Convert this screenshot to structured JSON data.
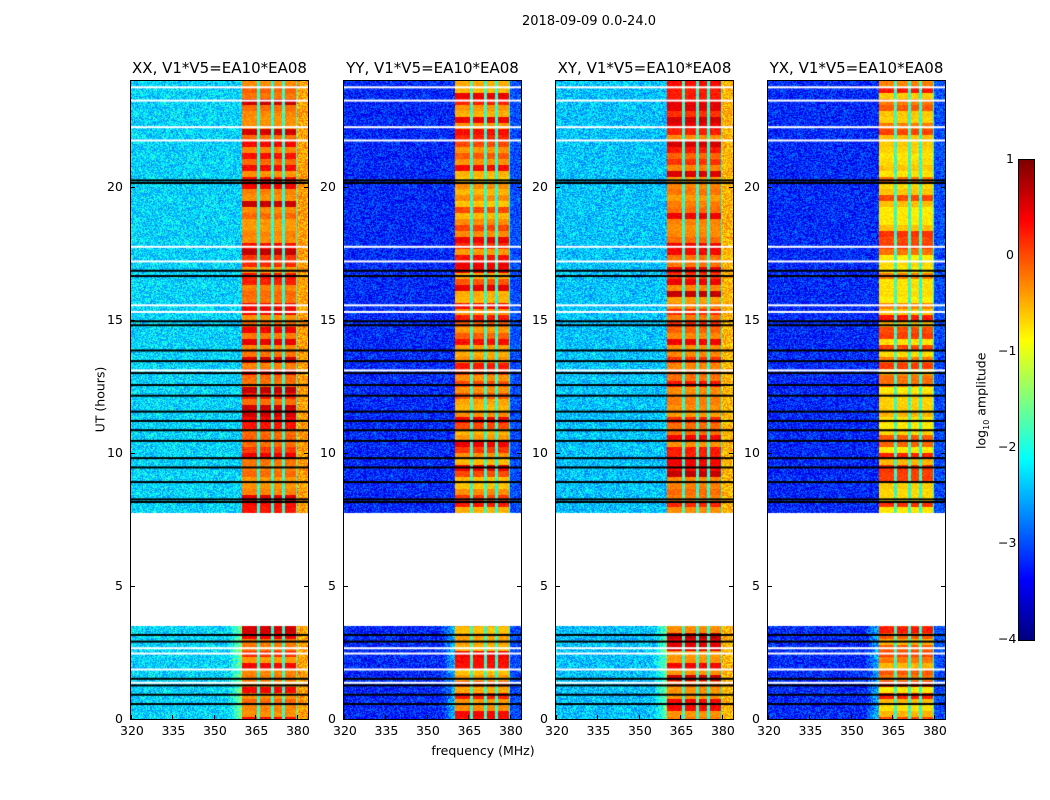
{
  "chart_data": {
    "type": "heatmap",
    "suptitle": "2018-09-09 0.0-24.0",
    "xlabel": "frequency (MHz)",
    "ylabel": "UT (hours)",
    "xlim": [
      320,
      384
    ],
    "ylim": [
      0,
      24
    ],
    "xticks": [
      320,
      335,
      350,
      365,
      380
    ],
    "yticks": [
      0,
      5,
      10,
      15,
      20
    ],
    "panels": [
      {
        "title": "XX, V1*V5=EA10*EA08",
        "background_log_amp": -2.3,
        "band_log_amp": -0.4,
        "outer_edge_log_amp": -0.4
      },
      {
        "title": "YY, V1*V5=EA10*EA08",
        "background_log_amp": -3.2,
        "band_log_amp": -0.6,
        "outer_edge_log_amp": -3.0
      },
      {
        "title": "XY, V1*V5=EA10*EA08",
        "background_log_amp": -2.4,
        "band_log_amp": -0.4,
        "outer_edge_log_amp": -0.5
      },
      {
        "title": "YX, V1*V5=EA10*EA08",
        "background_log_amp": -3.2,
        "band_log_amp": -0.8,
        "outer_edge_log_amp": -3.0
      }
    ],
    "rfi_band_mhz": [
      360,
      380
    ],
    "no_data_hours": [
      3.5,
      7.75
    ],
    "flagged_rows_black_hours": [
      20.2,
      20.3,
      16.9,
      16.7,
      15.0,
      14.85,
      13.9,
      13.5,
      13.05,
      12.6,
      12.2,
      11.6,
      11.25,
      10.9,
      10.5,
      9.85,
      9.5,
      8.95,
      8.3,
      8.2,
      3.2,
      2.95,
      1.55,
      1.3,
      0.95,
      0.6
    ],
    "flagged_rows_white_hours": [
      23.8,
      23.3,
      22.3,
      21.8,
      17.8,
      17.25,
      15.6,
      15.35,
      13.15,
      2.7,
      2.5,
      1.9,
      1.4
    ],
    "colorbar": {
      "label_prefix": "log",
      "label_sub": "10",
      "label_suffix": " amplitude",
      "range": [
        -4,
        1
      ],
      "ticks": [
        "1",
        "0",
        "−1",
        "−2",
        "−3",
        "−4"
      ],
      "colormap": "jet"
    }
  }
}
